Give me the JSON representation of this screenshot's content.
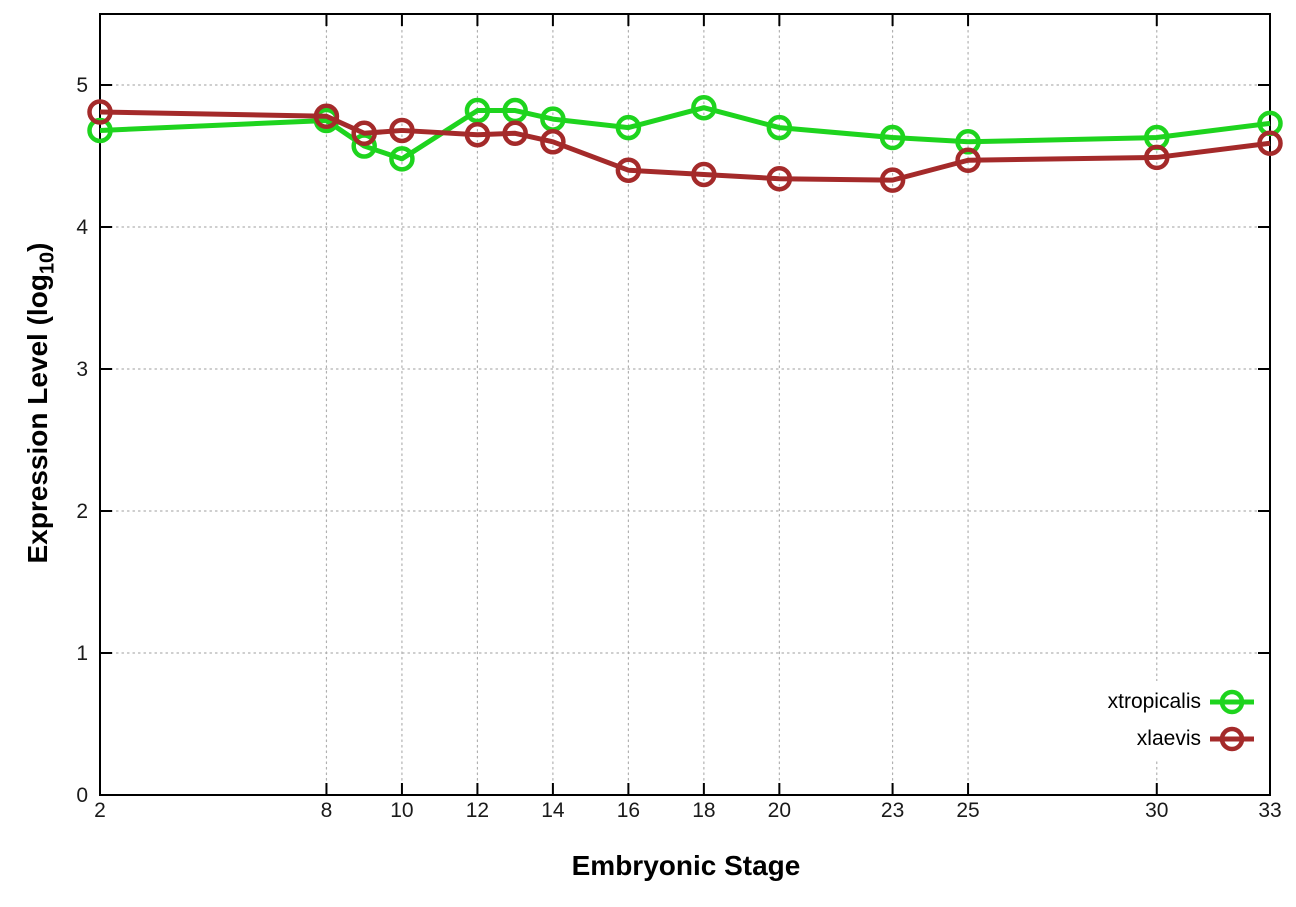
{
  "chart_data": {
    "type": "line",
    "title": "",
    "xlabel": "Embryonic Stage",
    "ylabel": "Expression Level (log10)",
    "ylabel_parts": {
      "prefix": "Expression Level (log",
      "subscript": "10",
      "suffix": ")"
    },
    "xlim": [
      2,
      33
    ],
    "ylim": [
      0,
      5.5
    ],
    "x_ticks": [
      2,
      8,
      10,
      12,
      14,
      16,
      18,
      20,
      23,
      25,
      30,
      33
    ],
    "y_ticks": [
      0,
      1,
      2,
      3,
      4,
      5
    ],
    "grid": "dotted",
    "legend_position": "inside-bottom-right",
    "x": [
      2,
      8,
      9,
      10,
      12,
      13,
      14,
      16,
      18,
      20,
      23,
      25,
      30,
      33
    ],
    "series": [
      {
        "name": "xtropicalis",
        "color": "#1ed41e",
        "values": [
          4.68,
          4.75,
          4.57,
          4.48,
          4.82,
          4.82,
          4.76,
          4.7,
          4.84,
          4.7,
          4.63,
          4.6,
          4.63,
          4.73
        ]
      },
      {
        "name": "xlaevis",
        "color": "#a42a2a",
        "values": [
          4.81,
          4.78,
          4.66,
          4.68,
          4.65,
          4.66,
          4.6,
          4.4,
          4.37,
          4.34,
          4.33,
          4.47,
          4.49,
          4.59
        ]
      }
    ],
    "axis_color": "#000000",
    "grid_color": "#b0b0b0",
    "text_color": "#1a1a1a",
    "background": "#ffffff"
  }
}
